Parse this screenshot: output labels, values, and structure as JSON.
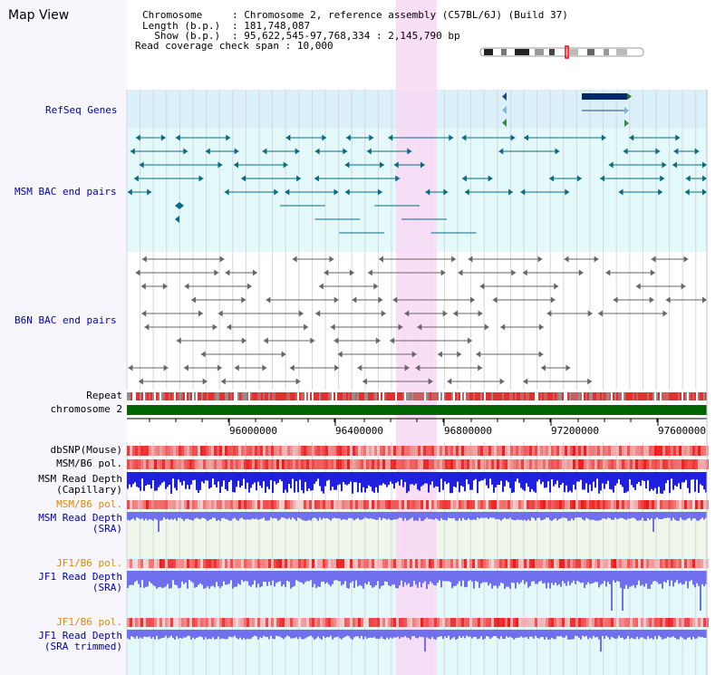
{
  "header": {
    "title": "Map View",
    "fields": [
      {
        "label": "Chromosome",
        "value": "Chromosome 2, reference assembly (C57BL/6J) (Build 37)"
      },
      {
        "label": "Length (b.p.)",
        "value": "181,748,087"
      },
      {
        "label": "Show (b.p.)",
        "value": "95,622,545-97,768,334 : 2,145,790 bp"
      }
    ],
    "coverage": {
      "label": "Read coverage check span",
      "value": "10,000"
    }
  },
  "tracks": {
    "refseq": "RefSeq Genes",
    "msm_bac": "MSM BAC end pairs",
    "b6n_bac": "B6N BAC end pairs",
    "repeat": "Repeat",
    "chromosome": "chromosome 2",
    "dbsnp": "dbSNP(Mouse)",
    "msm_b6_pol_1": "MSM/B6 pol.",
    "msm_depth_cap_1": "MSM Read Depth",
    "msm_depth_cap_2": "(Capillary)",
    "msm_b6_pol_2": "MSM/B6 pol.",
    "msm_depth_sra_1": "MSM Read Depth",
    "msm_depth_sra_2": "(SRA)",
    "jf1_pol_1": "JF1/B6 pol.",
    "jf1_depth_1": "JF1 Read Depth",
    "jf1_depth_2": "(SRA)",
    "jf1_pol_2": "JF1/B6 pol.",
    "jf1_trim_1": "JF1 Read Depth",
    "jf1_trim_2": "(SRA trimmed)"
  },
  "axis": {
    "ticks": [
      "96000000",
      "96400000",
      "96800000",
      "97200000",
      "97600000"
    ]
  },
  "colors": {
    "highlight": "#f8d8f4",
    "refseq_bg": "#dcf0fa",
    "msm_bg": "#e4fafa",
    "chrom_bar": "#006600",
    "depth_blue": "#2020e0",
    "depth_light": "#7070ee",
    "snp_red": "#ee2222",
    "bac_teal": "#0a6a86",
    "bac_gray": "#666666"
  }
}
